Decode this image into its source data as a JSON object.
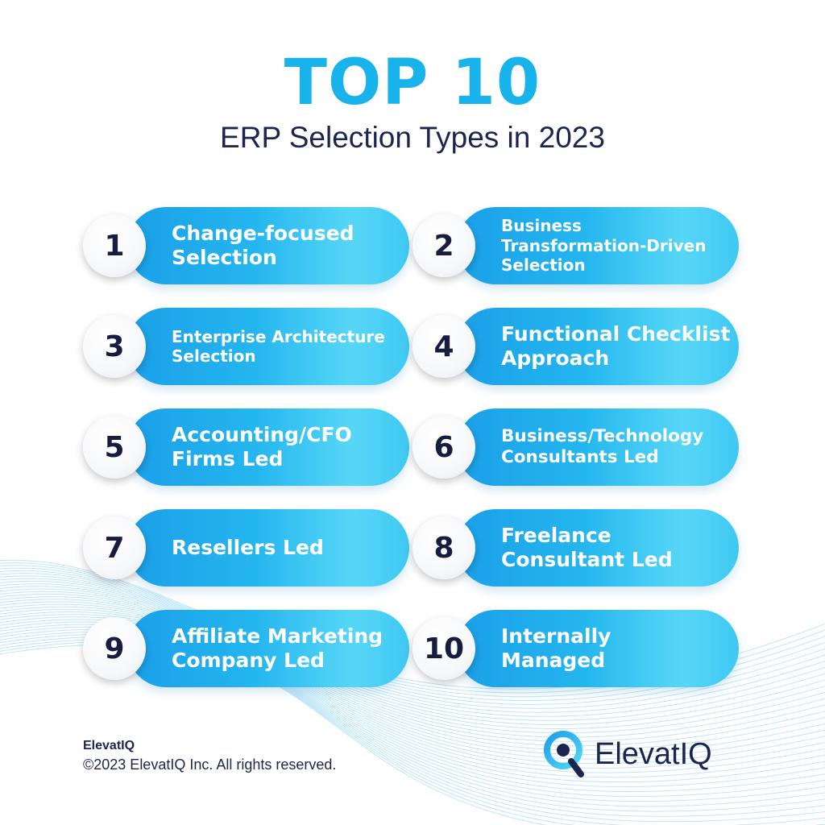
{
  "header": {
    "title": "TOP 10",
    "subtitle": "ERP Selection Types in 2023"
  },
  "items": [
    {
      "number": "1",
      "label": "Change-focused\nSelection"
    },
    {
      "number": "2",
      "label": "Business\nTransformation-Driven\nSelection"
    },
    {
      "number": "3",
      "label": "Enterprise Architecture\nSelection"
    },
    {
      "number": "4",
      "label": "Functional Checklist\nApproach"
    },
    {
      "number": "5",
      "label": "Accounting/CFO\nFirms Led"
    },
    {
      "number": "6",
      "label": "Business/Technology\nConsultants Led"
    },
    {
      "number": "7",
      "label": "Resellers Led"
    },
    {
      "number": "8",
      "label": "Freelance\nConsultant Led"
    },
    {
      "number": "9",
      "label": "Affiliate Marketing\nCompany Led"
    },
    {
      "number": "10",
      "label": "Internally\nManaged"
    }
  ],
  "footer": {
    "brand": "ElevatIQ",
    "copyright": "©2023 ElevatIQ Inc. All rights reserved."
  },
  "logo": {
    "text": "ElevatIQ",
    "icon": "magnifier-q-icon"
  },
  "colors": {
    "accent": "#17b3ea",
    "navy": "#1c2550",
    "pill_start": "#1a9fe8",
    "pill_end": "#57d7f7"
  }
}
